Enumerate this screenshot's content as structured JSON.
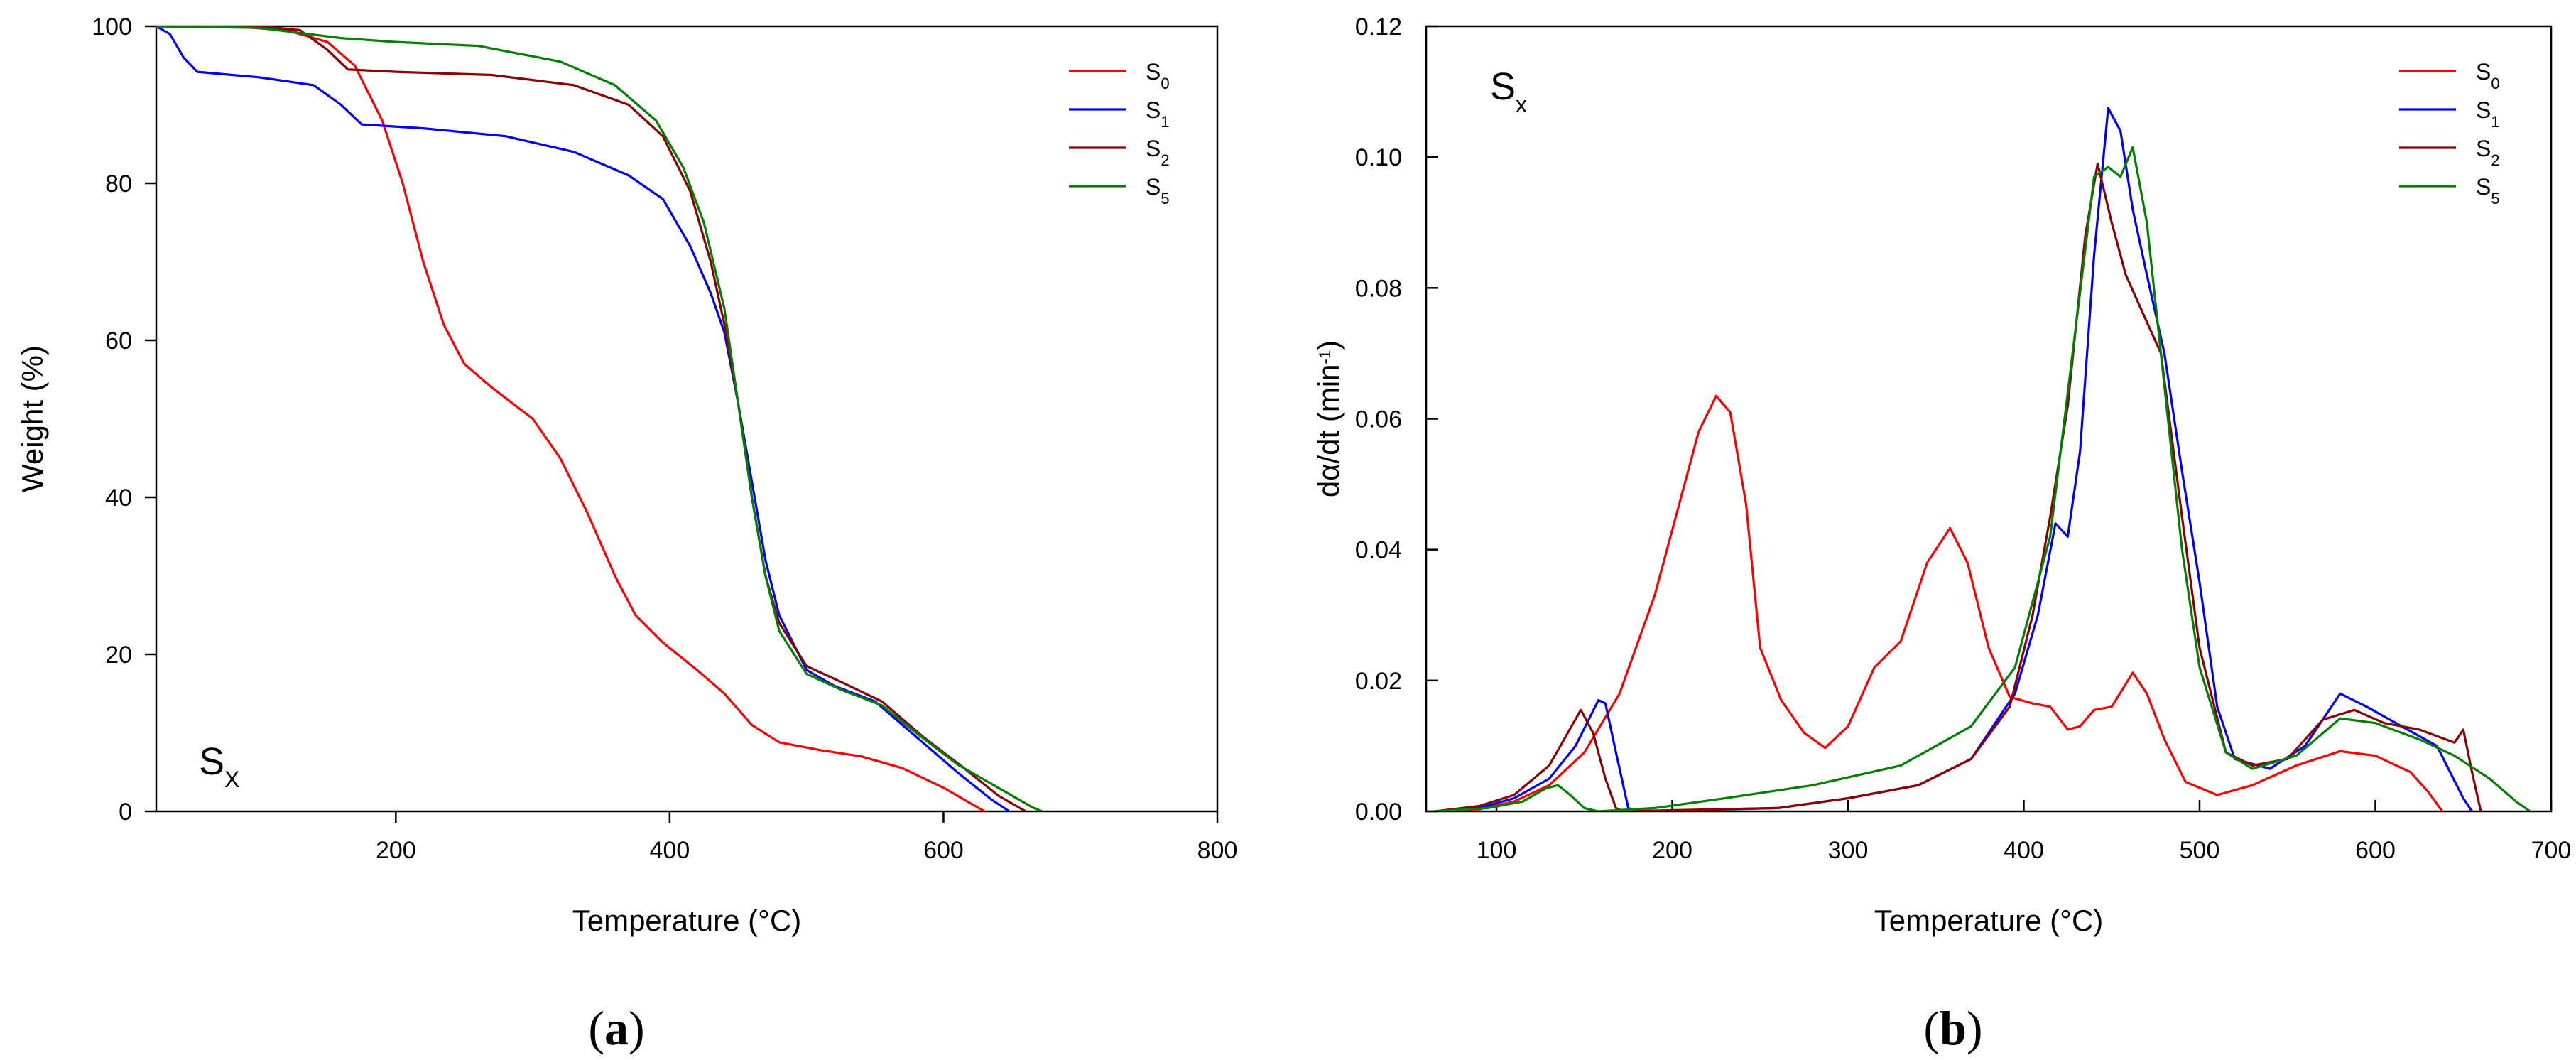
{
  "chart_data": [
    {
      "type": "line",
      "panel": "a",
      "panel_label": "a",
      "corner_label": {
        "base": "S",
        "sub": "X"
      },
      "xlabel": "Temperature (°C)",
      "ylabel": "Weight (%)",
      "xlim": [
        25,
        800
      ],
      "ylim": [
        0,
        100
      ],
      "xticks": [
        200,
        400,
        600,
        800
      ],
      "yticks": [
        0,
        20,
        40,
        60,
        80,
        100
      ],
      "xtick_labels": [
        "200",
        "400",
        "600",
        "800"
      ],
      "ytick_labels": [
        "0",
        "20",
        "40",
        "60",
        "80",
        "100"
      ],
      "legend_position": "top-right",
      "series": [
        {
          "name": "S0",
          "base": "S",
          "sub": "0",
          "color": "#ff0000",
          "points": [
            [
              25,
              100
            ],
            [
              80,
              100
            ],
            [
              120,
              99.5
            ],
            [
              150,
              98
            ],
            [
              170,
              95
            ],
            [
              190,
              88
            ],
            [
              205,
              80
            ],
            [
              220,
              70
            ],
            [
              235,
              62
            ],
            [
              250,
              57
            ],
            [
              270,
              54
            ],
            [
              300,
              50
            ],
            [
              320,
              45
            ],
            [
              340,
              38
            ],
            [
              360,
              30
            ],
            [
              375,
              25
            ],
            [
              395,
              21.5
            ],
            [
              420,
              18
            ],
            [
              440,
              15
            ],
            [
              460,
              11
            ],
            [
              480,
              8.8
            ],
            [
              510,
              7.8
            ],
            [
              540,
              7
            ],
            [
              570,
              5.5
            ],
            [
              600,
              3
            ],
            [
              620,
              1
            ],
            [
              630,
              0
            ]
          ]
        },
        {
          "name": "S1",
          "base": "S",
          "sub": "1",
          "color": "#0000ff",
          "points": [
            [
              25,
              100
            ],
            [
              35,
              99
            ],
            [
              45,
              96
            ],
            [
              55,
              94.2
            ],
            [
              100,
              93.5
            ],
            [
              140,
              92.5
            ],
            [
              160,
              90
            ],
            [
              175,
              87.5
            ],
            [
              220,
              87
            ],
            [
              280,
              86
            ],
            [
              330,
              84
            ],
            [
              370,
              81
            ],
            [
              395,
              78
            ],
            [
              415,
              72
            ],
            [
              430,
              66
            ],
            [
              440,
              61
            ],
            [
              450,
              52
            ],
            [
              460,
              42
            ],
            [
              470,
              32
            ],
            [
              480,
              25
            ],
            [
              500,
              18
            ],
            [
              520,
              16
            ],
            [
              550,
              14
            ],
            [
              580,
              9.5
            ],
            [
              610,
              5
            ],
            [
              635,
              1.5
            ],
            [
              648,
              0
            ]
          ]
        },
        {
          "name": "S2",
          "base": "S",
          "sub": "2",
          "color": "#8b0000",
          "points": [
            [
              25,
              100
            ],
            [
              100,
              100
            ],
            [
              130,
              99.5
            ],
            [
              150,
              97
            ],
            [
              165,
              94.5
            ],
            [
              200,
              94.2
            ],
            [
              270,
              93.8
            ],
            [
              330,
              92.5
            ],
            [
              370,
              90
            ],
            [
              395,
              86
            ],
            [
              415,
              79
            ],
            [
              430,
              70
            ],
            [
              440,
              62
            ],
            [
              450,
              52
            ],
            [
              460,
              40
            ],
            [
              470,
              30
            ],
            [
              480,
              24
            ],
            [
              500,
              18.5
            ],
            [
              525,
              16.5
            ],
            [
              555,
              14
            ],
            [
              585,
              9.5
            ],
            [
              615,
              5.5
            ],
            [
              640,
              2
            ],
            [
              660,
              0
            ]
          ]
        },
        {
          "name": "S5",
          "base": "S",
          "sub": "5",
          "color": "#008000",
          "points": [
            [
              25,
              100
            ],
            [
              100,
              99.8
            ],
            [
              160,
              98.5
            ],
            [
              200,
              98
            ],
            [
              260,
              97.5
            ],
            [
              320,
              95.5
            ],
            [
              360,
              92.5
            ],
            [
              390,
              88
            ],
            [
              410,
              82
            ],
            [
              425,
              75
            ],
            [
              440,
              64
            ],
            [
              450,
              52
            ],
            [
              460,
              40
            ],
            [
              470,
              30
            ],
            [
              480,
              23
            ],
            [
              500,
              17.5
            ],
            [
              525,
              15.5
            ],
            [
              555,
              13.5
            ],
            [
              580,
              10
            ],
            [
              610,
              6
            ],
            [
              640,
              3
            ],
            [
              665,
              0.5
            ],
            [
              672,
              0
            ]
          ]
        }
      ]
    },
    {
      "type": "line",
      "panel": "b",
      "panel_label": "b",
      "corner_label": {
        "base": "S",
        "sub": "x"
      },
      "xlabel": "Temperature (°C)",
      "ylabel": "dα/dt (min-1)",
      "ylabel_parts": {
        "base": "dα/dt (min",
        "sup": "-1",
        "end": ")"
      },
      "xlim": [
        60,
        700
      ],
      "ylim": [
        0,
        0.12
      ],
      "xticks": [
        100,
        200,
        300,
        400,
        500,
        600,
        700
      ],
      "yticks": [
        0,
        0.02,
        0.04,
        0.06,
        0.08,
        0.1,
        0.12
      ],
      "xtick_labels": [
        "100",
        "200",
        "300",
        "400",
        "500",
        "600",
        "700"
      ],
      "ytick_labels": [
        "0.00",
        "0.02",
        "0.04",
        "0.06",
        "0.08",
        "0.10",
        "0.12"
      ],
      "legend_position": "top-right",
      "series": [
        {
          "name": "S0",
          "base": "S",
          "sub": "0",
          "color": "#ff0000",
          "points": [
            [
              65,
              0
            ],
            [
              90,
              0.0003
            ],
            [
              110,
              0.0015
            ],
            [
              130,
              0.004
            ],
            [
              150,
              0.009
            ],
            [
              170,
              0.018
            ],
            [
              190,
              0.033
            ],
            [
              205,
              0.048
            ],
            [
              215,
              0.058
            ],
            [
              225,
              0.0635
            ],
            [
              233,
              0.061
            ],
            [
              242,
              0.047
            ],
            [
              250,
              0.025
            ],
            [
              262,
              0.017
            ],
            [
              275,
              0.012
            ],
            [
              287,
              0.0097
            ],
            [
              300,
              0.013
            ],
            [
              315,
              0.022
            ],
            [
              330,
              0.026
            ],
            [
              345,
              0.038
            ],
            [
              358,
              0.0433
            ],
            [
              368,
              0.038
            ],
            [
              380,
              0.025
            ],
            [
              392,
              0.0175
            ],
            [
              405,
              0.0165
            ],
            [
              415,
              0.016
            ],
            [
              425,
              0.0125
            ],
            [
              432,
              0.013
            ],
            [
              440,
              0.0155
            ],
            [
              450,
              0.016
            ],
            [
              462,
              0.0212
            ],
            [
              470,
              0.018
            ],
            [
              480,
              0.011
            ],
            [
              492,
              0.0045
            ],
            [
              510,
              0.0025
            ],
            [
              530,
              0.004
            ],
            [
              555,
              0.007
            ],
            [
              580,
              0.0092
            ],
            [
              600,
              0.0085
            ],
            [
              620,
              0.006
            ],
            [
              630,
              0.003
            ],
            [
              638,
              0
            ]
          ]
        },
        {
          "name": "S1",
          "base": "S",
          "sub": "1",
          "color": "#0000ff",
          "points": [
            [
              65,
              0
            ],
            [
              90,
              0.0005
            ],
            [
              110,
              0.002
            ],
            [
              130,
              0.005
            ],
            [
              145,
              0.01
            ],
            [
              158,
              0.017
            ],
            [
              162,
              0.0165
            ],
            [
              168,
              0.009
            ],
            [
              175,
              0.0005
            ],
            [
              180,
              0
            ],
            [
              260,
              0.0005
            ],
            [
              300,
              0.002
            ],
            [
              340,
              0.004
            ],
            [
              370,
              0.008
            ],
            [
              395,
              0.018
            ],
            [
              408,
              0.03
            ],
            [
              418,
              0.044
            ],
            [
              425,
              0.042
            ],
            [
              432,
              0.055
            ],
            [
              440,
              0.085
            ],
            [
              448,
              0.1075
            ],
            [
              455,
              0.104
            ],
            [
              462,
              0.092
            ],
            [
              470,
              0.082
            ],
            [
              480,
              0.07
            ],
            [
              490,
              0.052
            ],
            [
              500,
              0.035
            ],
            [
              510,
              0.016
            ],
            [
              520,
              0.008
            ],
            [
              540,
              0.0065
            ],
            [
              560,
              0.01
            ],
            [
              580,
              0.018
            ],
            [
              595,
              0.016
            ],
            [
              615,
              0.013
            ],
            [
              635,
              0.01
            ],
            [
              650,
              0.002
            ],
            [
              655,
              0
            ]
          ]
        },
        {
          "name": "S2",
          "base": "S",
          "sub": "2",
          "color": "#8b0000",
          "points": [
            [
              65,
              0
            ],
            [
              90,
              0.0008
            ],
            [
              110,
              0.0025
            ],
            [
              130,
              0.007
            ],
            [
              148,
              0.0155
            ],
            [
              155,
              0.012
            ],
            [
              162,
              0.005
            ],
            [
              168,
              0.0005
            ],
            [
              172,
              0
            ],
            [
              260,
              0.0005
            ],
            [
              300,
              0.002
            ],
            [
              340,
              0.004
            ],
            [
              370,
              0.008
            ],
            [
              392,
              0.016
            ],
            [
              405,
              0.03
            ],
            [
              415,
              0.045
            ],
            [
              425,
              0.062
            ],
            [
              435,
              0.088
            ],
            [
              442,
              0.099
            ],
            [
              450,
              0.09
            ],
            [
              458,
              0.082
            ],
            [
              468,
              0.076
            ],
            [
              478,
              0.07
            ],
            [
              490,
              0.045
            ],
            [
              500,
              0.025
            ],
            [
              515,
              0.009
            ],
            [
              530,
              0.007
            ],
            [
              550,
              0.008
            ],
            [
              570,
              0.014
            ],
            [
              588,
              0.0155
            ],
            [
              605,
              0.0135
            ],
            [
              625,
              0.0125
            ],
            [
              645,
              0.0105
            ],
            [
              650,
              0.0125
            ],
            [
              655,
              0.006
            ],
            [
              660,
              0
            ]
          ]
        },
        {
          "name": "S5",
          "base": "S",
          "sub": "5",
          "color": "#008000",
          "points": [
            [
              65,
              0
            ],
            [
              95,
              0.0005
            ],
            [
              115,
              0.0015
            ],
            [
              128,
              0.0035
            ],
            [
              135,
              0.004
            ],
            [
              142,
              0.0025
            ],
            [
              150,
              0.0005
            ],
            [
              158,
              0
            ],
            [
              190,
              0.0005
            ],
            [
              230,
              0.002
            ],
            [
              280,
              0.004
            ],
            [
              330,
              0.007
            ],
            [
              370,
              0.013
            ],
            [
              395,
              0.022
            ],
            [
              415,
              0.042
            ],
            [
              430,
              0.075
            ],
            [
              440,
              0.097
            ],
            [
              448,
              0.0985
            ],
            [
              455,
              0.097
            ],
            [
              462,
              0.1015
            ],
            [
              470,
              0.09
            ],
            [
              480,
              0.065
            ],
            [
              490,
              0.04
            ],
            [
              500,
              0.022
            ],
            [
              515,
              0.009
            ],
            [
              530,
              0.0065
            ],
            [
              555,
              0.0085
            ],
            [
              580,
              0.0142
            ],
            [
              600,
              0.0135
            ],
            [
              625,
              0.011
            ],
            [
              645,
              0.0085
            ],
            [
              665,
              0.005
            ],
            [
              680,
              0.0015
            ],
            [
              688,
              0
            ]
          ]
        }
      ]
    }
  ]
}
